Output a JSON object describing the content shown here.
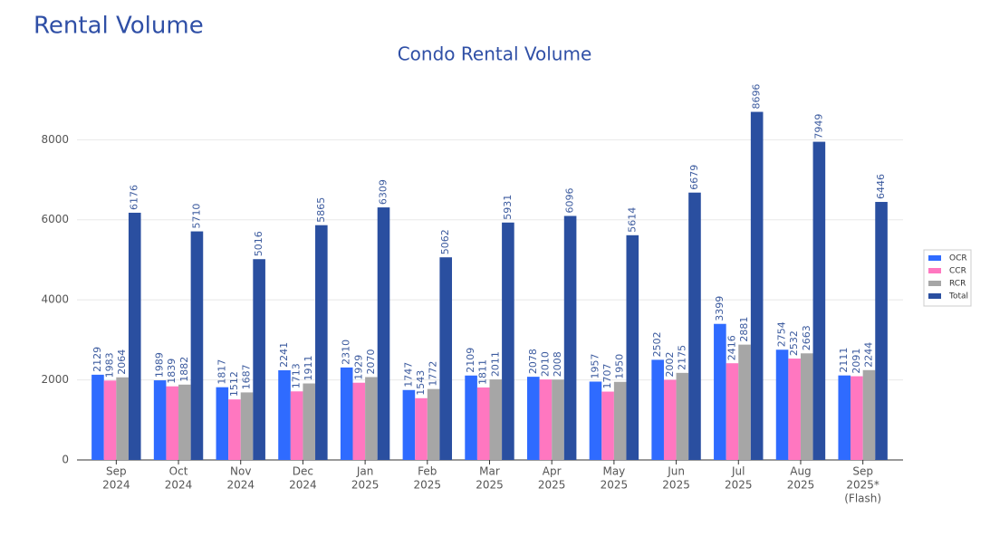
{
  "header": {
    "title": "Rental Volume"
  },
  "chart_data": {
    "type": "bar",
    "title": "Condo Rental Volume",
    "categories": [
      [
        "Sep",
        "2024"
      ],
      [
        "Oct",
        "2024"
      ],
      [
        "Nov",
        "2024"
      ],
      [
        "Dec",
        "2024"
      ],
      [
        "Jan",
        "2025"
      ],
      [
        "Feb",
        "2025"
      ],
      [
        "Mar",
        "2025"
      ],
      [
        "Apr",
        "2025"
      ],
      [
        "May",
        "2025"
      ],
      [
        "Jun",
        "2025"
      ],
      [
        "Jul",
        "2025"
      ],
      [
        "Aug",
        "2025"
      ],
      [
        "Sep",
        "2025*",
        "(Flash)"
      ]
    ],
    "series": [
      {
        "name": "OCR",
        "color": "#2f6bff",
        "values": [
          2129,
          1989,
          1817,
          2241,
          2310,
          1747,
          2109,
          2078,
          1957,
          2502,
          3399,
          2754,
          2111
        ]
      },
      {
        "name": "CCR",
        "color": "#ff77c0",
        "values": [
          1983,
          1839,
          1512,
          1713,
          1929,
          1543,
          1811,
          2010,
          1707,
          2002,
          2416,
          2532,
          2091
        ]
      },
      {
        "name": "RCR",
        "color": "#a6a6a6",
        "values": [
          2064,
          1882,
          1687,
          1911,
          2070,
          1772,
          2011,
          2008,
          1950,
          2175,
          2881,
          2663,
          2244
        ]
      },
      {
        "name": "Total",
        "color": "#2a4fa0",
        "values": [
          6176,
          5710,
          5016,
          5865,
          6309,
          5062,
          5931,
          6096,
          5614,
          6679,
          8696,
          7949,
          6446
        ]
      }
    ],
    "ylim": [
      0,
      9500
    ],
    "yticks": [
      0,
      2000,
      4000,
      6000,
      8000
    ],
    "grid": true,
    "legend": "right"
  }
}
